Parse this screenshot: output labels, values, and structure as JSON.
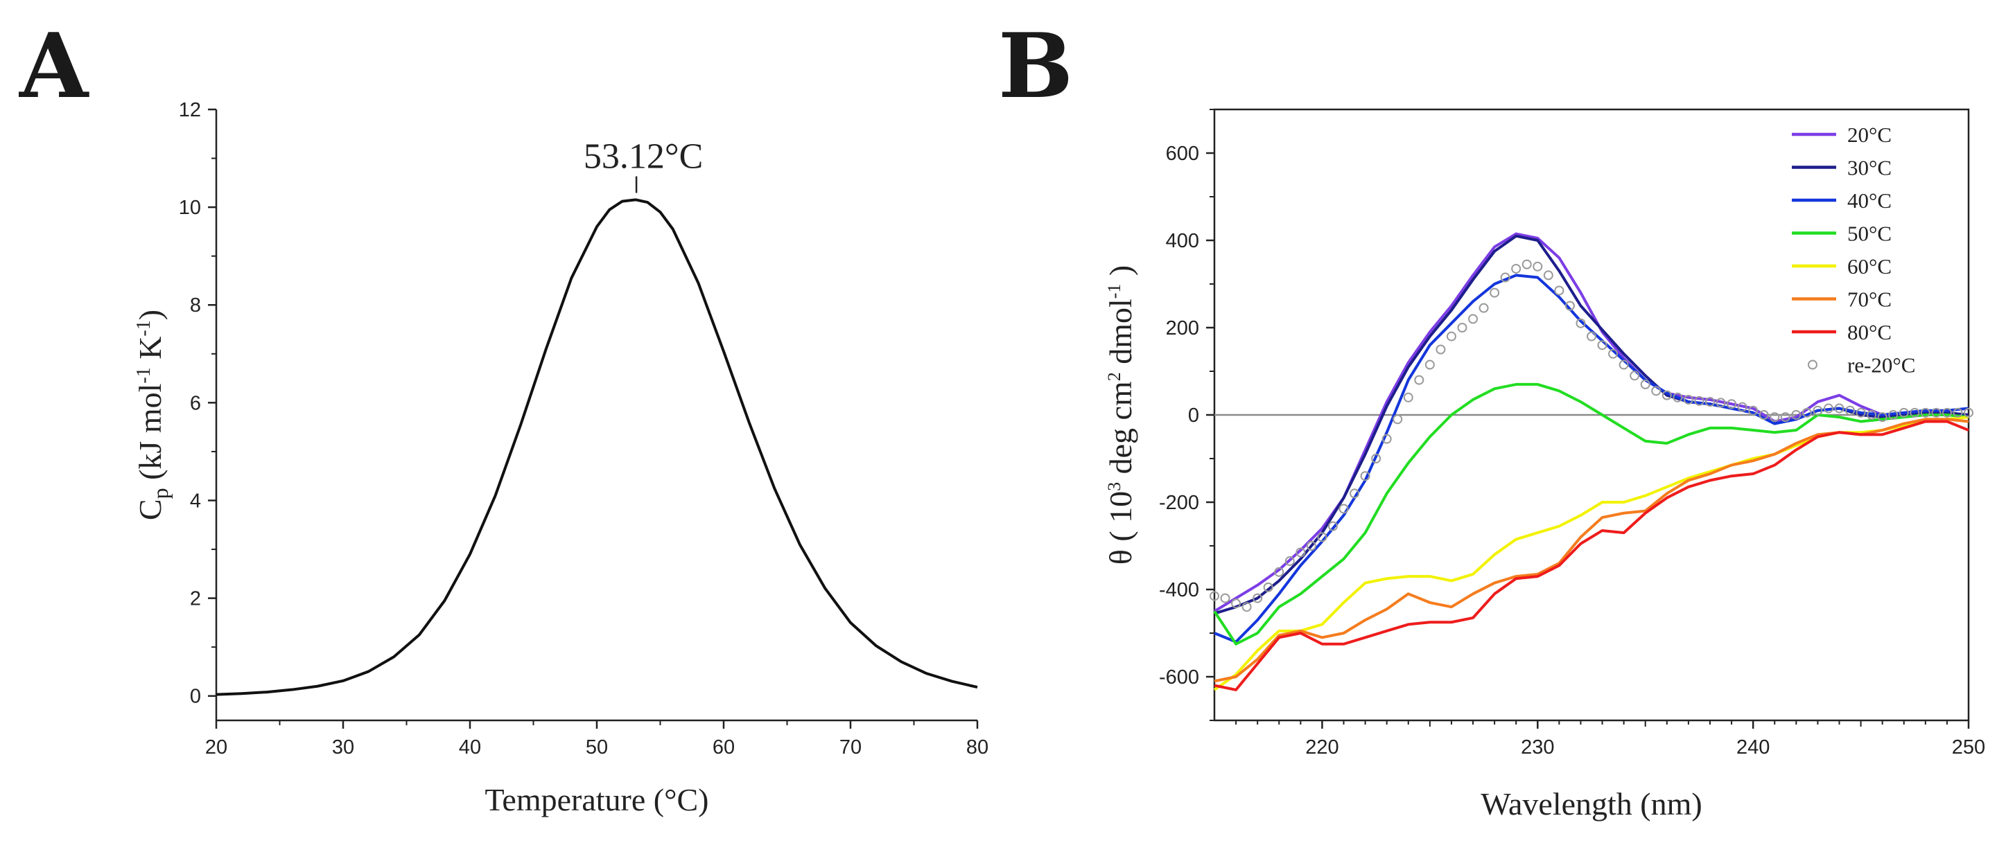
{
  "panel_labels": {
    "a": "A",
    "b": "B"
  },
  "chart_data": [
    {
      "type": "line",
      "panel": "A",
      "xlabel": "Temperature (°C)",
      "ylabel": {
        "base": "C",
        "sub": "p",
        "rest_open": " (kJ mol",
        "sup1": "-1",
        "mid": " K",
        "sup2": "-1",
        "close": ")"
      },
      "xlim": [
        20,
        80
      ],
      "ylim": [
        -0.5,
        12
      ],
      "xticks": [
        20,
        30,
        40,
        50,
        60,
        70,
        80
      ],
      "yticks": [
        0,
        2,
        4,
        6,
        8,
        10,
        12
      ],
      "annotation": {
        "text": "53.12°C",
        "x": 53.12,
        "y": 10.15
      },
      "series": [
        {
          "color": "#111111",
          "x": [
            20,
            22,
            24,
            26,
            28,
            30,
            32,
            34,
            36,
            38,
            40,
            42,
            44,
            46,
            48,
            50,
            51,
            52,
            53,
            53.12,
            54,
            55,
            56,
            58,
            60,
            62,
            64,
            66,
            68,
            70,
            72,
            74,
            76,
            78,
            80
          ],
          "y": [
            0.03,
            0.05,
            0.08,
            0.13,
            0.2,
            0.31,
            0.5,
            0.8,
            1.25,
            1.95,
            2.9,
            4.1,
            5.55,
            7.1,
            8.55,
            9.6,
            9.95,
            10.12,
            10.15,
            10.15,
            10.1,
            9.9,
            9.55,
            8.45,
            7.05,
            5.6,
            4.25,
            3.1,
            2.2,
            1.5,
            1.03,
            0.7,
            0.46,
            0.3,
            0.18
          ]
        }
      ]
    },
    {
      "type": "line",
      "panel": "B",
      "xlabel": "Wavelength (nm)",
      "ylabel": {
        "rest_open": "θ ( 10",
        "sup1": "3",
        "mid": " deg cm",
        "sup2": "2",
        "tail": " dmol",
        "sup3": "-1",
        "close": " )"
      },
      "xlim": [
        215,
        250
      ],
      "ylim": [
        -700,
        700
      ],
      "xticks": [
        220,
        230,
        240,
        250
      ],
      "yticks": [
        -600,
        -400,
        -200,
        0,
        200,
        400,
        600
      ],
      "legend_position": "top-right",
      "series": [
        {
          "name": "20°C",
          "color": "#7c3ee6",
          "x": [
            215,
            216,
            217,
            218,
            219,
            220,
            221,
            222,
            223,
            224,
            225,
            226,
            227,
            228,
            229,
            230,
            231,
            232,
            233,
            234,
            235,
            236,
            237,
            238,
            239,
            240,
            241,
            242,
            243,
            244,
            245,
            246,
            247,
            248,
            249,
            250
          ],
          "y": [
            -450,
            -420,
            -390,
            -355,
            -310,
            -260,
            -190,
            -80,
            30,
            120,
            190,
            250,
            320,
            385,
            415,
            405,
            360,
            280,
            190,
            130,
            80,
            50,
            40,
            35,
            25,
            15,
            -15,
            -5,
            30,
            45,
            20,
            0,
            5,
            10,
            5,
            0
          ]
        },
        {
          "name": "30°C",
          "color": "#1e1e8c",
          "x": [
            215,
            216,
            217,
            218,
            219,
            220,
            221,
            222,
            223,
            224,
            225,
            226,
            227,
            228,
            229,
            230,
            231,
            232,
            233,
            234,
            235,
            236,
            237,
            238,
            239,
            240,
            241,
            242,
            243,
            244,
            245,
            246,
            247,
            248,
            249,
            250
          ],
          "y": [
            -455,
            -440,
            -420,
            -380,
            -330,
            -270,
            -190,
            -90,
            20,
            110,
            180,
            240,
            310,
            375,
            410,
            400,
            330,
            250,
            195,
            140,
            90,
            45,
            30,
            25,
            15,
            5,
            -20,
            -10,
            10,
            15,
            0,
            -5,
            0,
            5,
            5,
            0
          ]
        },
        {
          "name": "40°C",
          "color": "#1436dc",
          "x": [
            215,
            216,
            217,
            218,
            219,
            220,
            221,
            222,
            223,
            224,
            225,
            226,
            227,
            228,
            229,
            230,
            231,
            232,
            233,
            234,
            235,
            236,
            237,
            238,
            239,
            240,
            241,
            242,
            243,
            244,
            245,
            246,
            247,
            248,
            249,
            250
          ],
          "y": [
            -500,
            -520,
            -470,
            -410,
            -345,
            -290,
            -230,
            -150,
            -40,
            80,
            160,
            210,
            260,
            300,
            320,
            315,
            270,
            215,
            170,
            125,
            80,
            50,
            30,
            25,
            15,
            5,
            -20,
            -10,
            10,
            15,
            5,
            0,
            5,
            10,
            10,
            15
          ]
        },
        {
          "name": "50°C",
          "color": "#22dd22",
          "x": [
            215,
            216,
            217,
            218,
            219,
            220,
            221,
            222,
            223,
            224,
            225,
            226,
            227,
            228,
            229,
            230,
            231,
            232,
            233,
            234,
            235,
            236,
            237,
            238,
            239,
            240,
            241,
            242,
            243,
            244,
            245,
            246,
            247,
            248,
            249,
            250
          ],
          "y": [
            -450,
            -525,
            -500,
            -440,
            -410,
            -370,
            -330,
            -270,
            -180,
            -110,
            -50,
            0,
            35,
            60,
            70,
            70,
            55,
            30,
            0,
            -30,
            -60,
            -65,
            -45,
            -30,
            -30,
            -35,
            -40,
            -35,
            0,
            -5,
            -15,
            -10,
            -5,
            0,
            0,
            -5
          ]
        },
        {
          "name": "60°C",
          "color": "#f2f200",
          "x": [
            215,
            216,
            217,
            218,
            219,
            220,
            221,
            222,
            223,
            224,
            225,
            226,
            227,
            228,
            229,
            230,
            231,
            232,
            233,
            234,
            235,
            236,
            237,
            238,
            239,
            240,
            241,
            242,
            243,
            244,
            245,
            246,
            247,
            248,
            249,
            250
          ],
          "y": [
            -630,
            -595,
            -540,
            -495,
            -495,
            -480,
            -430,
            -385,
            -375,
            -370,
            -370,
            -380,
            -365,
            -320,
            -285,
            -270,
            -255,
            -230,
            -200,
            -200,
            -185,
            -165,
            -145,
            -130,
            -115,
            -100,
            -90,
            -70,
            -50,
            -40,
            -40,
            -35,
            -25,
            -15,
            -10,
            -5
          ]
        },
        {
          "name": "70°C",
          "color": "#f57c1e",
          "x": [
            215,
            216,
            217,
            218,
            219,
            220,
            221,
            222,
            223,
            224,
            225,
            226,
            227,
            228,
            229,
            230,
            231,
            232,
            233,
            234,
            235,
            236,
            237,
            238,
            239,
            240,
            241,
            242,
            243,
            244,
            245,
            246,
            247,
            248,
            249,
            250
          ],
          "y": [
            -610,
            -600,
            -560,
            -505,
            -495,
            -510,
            -500,
            -470,
            -445,
            -410,
            -430,
            -440,
            -410,
            -385,
            -370,
            -365,
            -340,
            -280,
            -235,
            -225,
            -220,
            -180,
            -150,
            -135,
            -115,
            -105,
            -90,
            -65,
            -45,
            -40,
            -45,
            -35,
            -20,
            -10,
            -10,
            -15
          ]
        },
        {
          "name": "80°C",
          "color": "#ee1c1c",
          "x": [
            215,
            216,
            217,
            218,
            219,
            220,
            221,
            222,
            223,
            224,
            225,
            226,
            227,
            228,
            229,
            230,
            231,
            232,
            233,
            234,
            235,
            236,
            237,
            238,
            239,
            240,
            241,
            242,
            243,
            244,
            245,
            246,
            247,
            248,
            249,
            250
          ],
          "y": [
            -620,
            -630,
            -570,
            -510,
            -500,
            -525,
            -525,
            -510,
            -495,
            -480,
            -475,
            -475,
            -465,
            -410,
            -375,
            -370,
            -345,
            -295,
            -265,
            -270,
            -225,
            -190,
            -165,
            -150,
            -140,
            -135,
            -115,
            -80,
            -50,
            -40,
            -45,
            -45,
            -30,
            -15,
            -15,
            -35
          ]
        },
        {
          "name": "re-20°C",
          "color": "#9a9a9a",
          "style": "circles",
          "x": [
            215,
            215.5,
            216,
            216.5,
            217,
            217.5,
            218,
            218.5,
            219,
            219.5,
            220,
            220.5,
            221,
            221.5,
            222,
            222.5,
            223,
            223.5,
            224,
            224.5,
            225,
            225.5,
            226,
            226.5,
            227,
            227.5,
            228,
            228.5,
            229,
            229.5,
            230,
            230.5,
            231,
            231.5,
            232,
            232.5,
            233,
            233.5,
            234,
            234.5,
            235,
            235.5,
            236,
            236.5,
            237,
            237.5,
            238,
            238.5,
            239,
            239.5,
            240,
            240.5,
            241,
            241.5,
            242,
            242.5,
            243,
            243.5,
            244,
            244.5,
            245,
            245.5,
            246,
            246.5,
            247,
            247.5,
            248,
            248.5,
            249,
            249.5,
            250
          ],
          "y": [
            -415,
            -420,
            -432,
            -440,
            -420,
            -395,
            -360,
            -335,
            -315,
            -300,
            -280,
            -255,
            -215,
            -180,
            -140,
            -100,
            -55,
            -10,
            40,
            80,
            115,
            150,
            180,
            200,
            220,
            245,
            280,
            315,
            335,
            345,
            340,
            320,
            285,
            250,
            210,
            180,
            160,
            140,
            115,
            90,
            70,
            55,
            45,
            40,
            35,
            32,
            30,
            28,
            25,
            18,
            10,
            0,
            -5,
            -5,
            0,
            5,
            10,
            15,
            15,
            10,
            5,
            0,
            -5,
            0,
            5,
            5,
            5,
            5,
            5,
            5,
            5
          ]
        }
      ]
    }
  ]
}
